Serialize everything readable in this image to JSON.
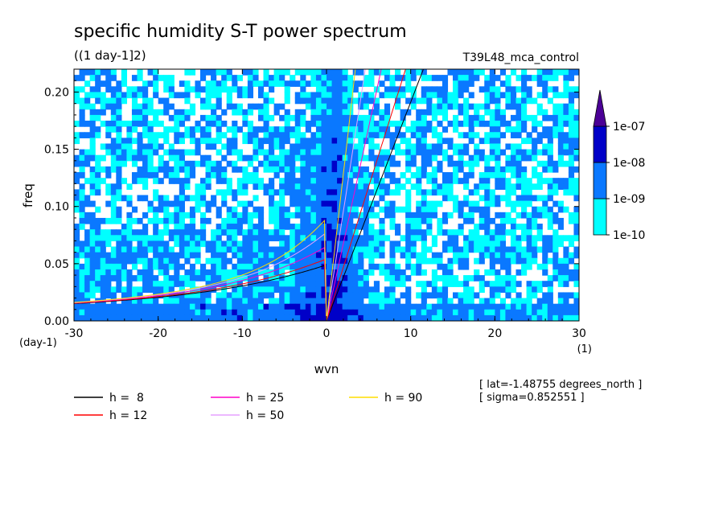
{
  "chart_data": {
    "type": "heatmap",
    "title": "specific humidity S-T power spectrum",
    "subtitle": "((1 day-1]2)",
    "dataset": "T39L48_mca_control",
    "xlabel": "wvn",
    "ylabel": "freq",
    "x_unit": "(1)",
    "y_unit": "(day-1)",
    "xlim": [
      -30,
      30
    ],
    "ylim": [
      0,
      0.22
    ],
    "xticks": [
      -30,
      -20,
      -10,
      0,
      10,
      20,
      30
    ],
    "xtick_labels": [
      "-30",
      "-20",
      "-10",
      "0",
      "10",
      "20",
      "30"
    ],
    "yticks": [
      0,
      0.05,
      0.1,
      0.15,
      0.2
    ],
    "ytick_labels": [
      "0.00",
      "0.05",
      "0.10",
      "0.15",
      "0.20"
    ],
    "colorbar": {
      "levels": [
        "1e-10",
        "1e-09",
        "1e-08",
        "1e-07"
      ],
      "colors": [
        "#00ffff",
        "#0a78ff",
        "#0000c8",
        "#4b0096"
      ],
      "extend": "max"
    },
    "dispersion_curves": [
      {
        "label": "h =  8",
        "h": 8,
        "color": "#000000"
      },
      {
        "label": "h = 12",
        "h": 12,
        "color": "#ff0000"
      },
      {
        "label": "h = 25",
        "h": 25,
        "color": "#ff00c8"
      },
      {
        "label": "h = 50",
        "h": 50,
        "color": "#e6a0ff"
      },
      {
        "label": "h = 90",
        "h": 90,
        "color": "#ffdd00"
      }
    ],
    "annotations": [
      "[ lat=-1.48755 degrees_north ]",
      "[ sigma=0.852551 ]"
    ]
  }
}
